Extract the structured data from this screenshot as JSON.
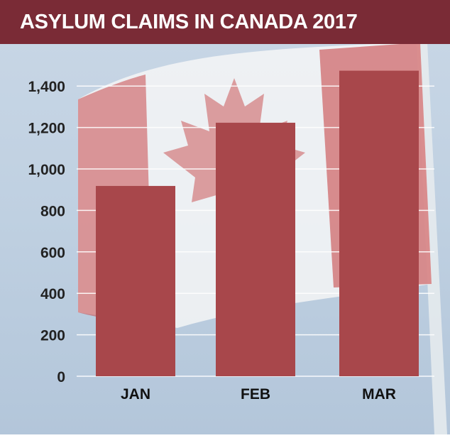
{
  "header": {
    "title": "ASYLUM CLAIMS IN CANADA 2017"
  },
  "colors": {
    "title_bar": "#7a2b36",
    "bar": "#a8474b",
    "background": "#c4d4e4"
  },
  "chart_data": {
    "type": "bar",
    "title": "ASYLUM CLAIMS IN CANADA 2017",
    "xlabel": "",
    "ylabel": "",
    "categories": [
      "JAN",
      "FEB",
      "MAR"
    ],
    "values": [
      918,
      1223,
      1474
    ],
    "ylim": [
      0,
      1500
    ],
    "yticks": [
      0,
      200,
      400,
      600,
      800,
      1000,
      1200,
      1400
    ],
    "ytick_labels": [
      "0",
      "200",
      "400",
      "600",
      "800",
      "1,000",
      "1,200",
      "1,400"
    ],
    "grid": true,
    "legend": "none"
  }
}
